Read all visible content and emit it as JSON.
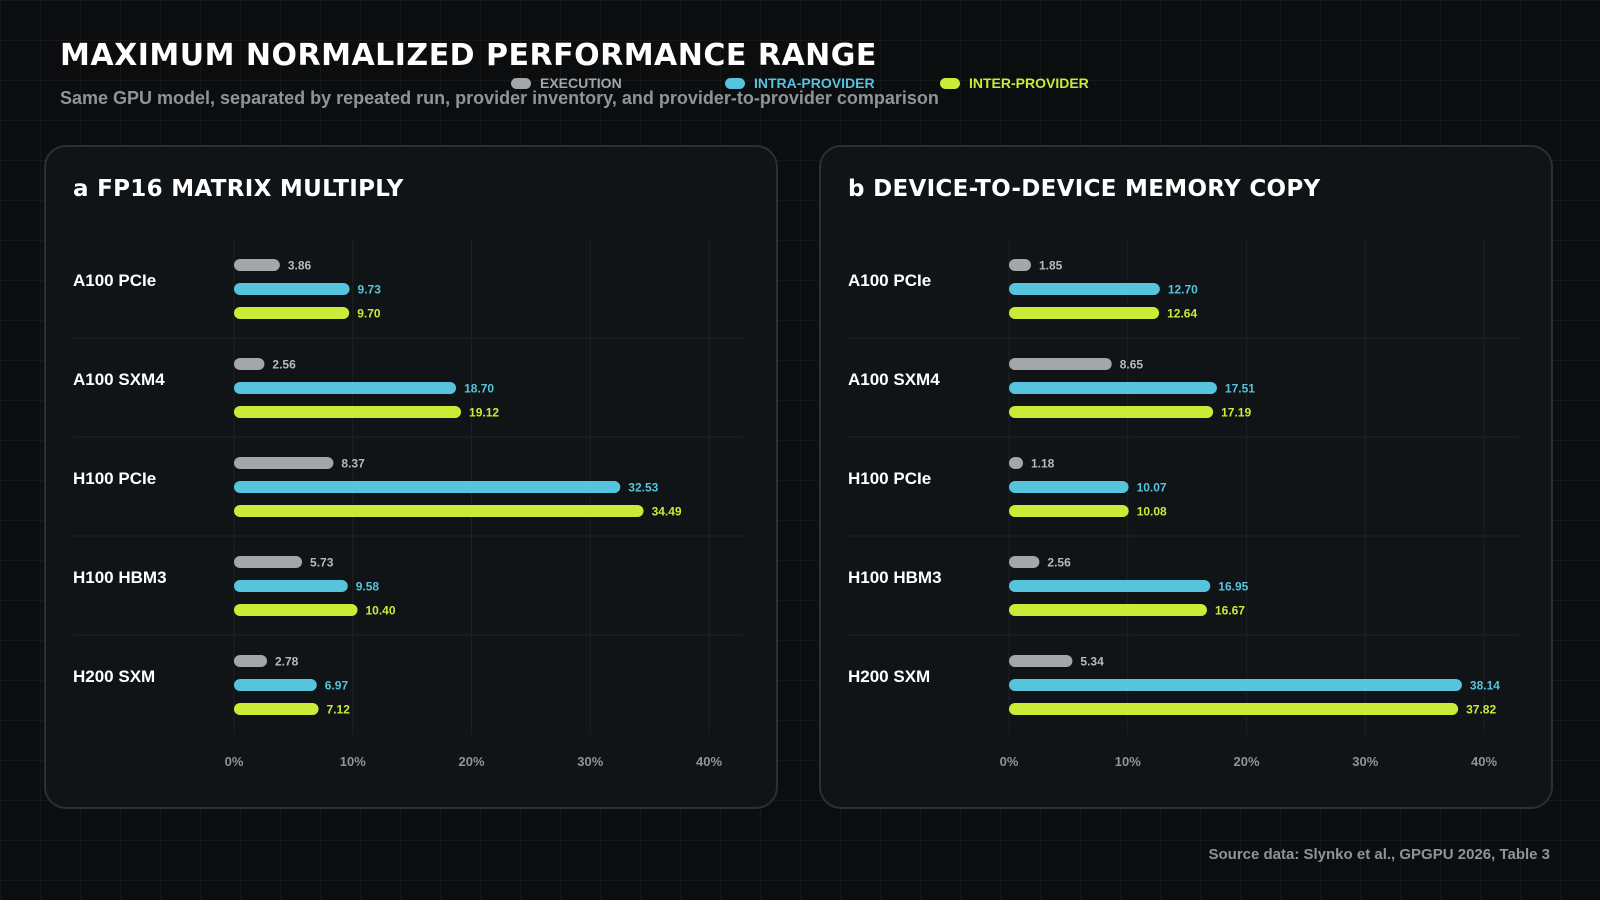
{
  "header": {
    "title": "MAXIMUM NORMALIZED PERFORMANCE RANGE",
    "subtitle": "Same GPU model, separated by repeated run, provider inventory, and provider-to-provider comparison"
  },
  "legend": [
    {
      "label": "EXECUTION",
      "color": "#a4a7aa"
    },
    {
      "label": "INTRA-PROVIDER",
      "color": "#55c4dc"
    },
    {
      "label": "INTER-PROVIDER",
      "color": "#c9ec37"
    }
  ],
  "chart_data": [
    {
      "type": "bar",
      "orientation": "horizontal",
      "title": "a FP16 MATRIX MULTIPLY",
      "categories": [
        "A100 PCIe",
        "A100 SXM4",
        "H100 PCIe",
        "H100 HBM3",
        "H200 SXM"
      ],
      "series": [
        {
          "name": "EXECUTION",
          "values": [
            3.86,
            2.56,
            8.37,
            5.73,
            2.78
          ],
          "labels": [
            "3.86",
            "2.56",
            "8.37",
            "5.73",
            "2.78"
          ]
        },
        {
          "name": "INTRA-PROVIDER",
          "values": [
            9.73,
            18.7,
            32.53,
            9.58,
            6.97
          ],
          "labels": [
            "9.73",
            "18.70",
            "32.53",
            "9.58",
            "6.97"
          ]
        },
        {
          "name": "INTER-PROVIDER",
          "values": [
            9.7,
            19.12,
            34.49,
            10.4,
            7.12
          ],
          "labels": [
            "9.70",
            "19.12",
            "34.49",
            "10.40",
            "7.12"
          ]
        }
      ],
      "xlim": [
        0,
        40
      ],
      "xticks": [
        "0%",
        "10%",
        "20%",
        "30%",
        "40%"
      ],
      "grid": true
    },
    {
      "type": "bar",
      "orientation": "horizontal",
      "title": "b DEVICE-TO-DEVICE MEMORY COPY",
      "categories": [
        "A100 PCIe",
        "A100 SXM4",
        "H100 PCIe",
        "H100 HBM3",
        "H200 SXM"
      ],
      "series": [
        {
          "name": "EXECUTION",
          "values": [
            1.85,
            8.65,
            1.18,
            2.56,
            5.34
          ],
          "labels": [
            "1.85",
            "8.65",
            "1.18",
            "2.56",
            "5.34"
          ]
        },
        {
          "name": "INTRA-PROVIDER",
          "values": [
            12.7,
            17.51,
            10.07,
            16.95,
            38.14
          ],
          "labels": [
            "12.70",
            "17.51",
            "10.07",
            "16.95",
            "38.14"
          ]
        },
        {
          "name": "INTER-PROVIDER",
          "values": [
            12.64,
            17.19,
            10.08,
            16.67,
            37.82
          ],
          "labels": [
            "12.64",
            "17.19",
            "10.08",
            "16.67",
            "37.82"
          ]
        }
      ],
      "xlim": [
        0,
        40
      ],
      "xticks": [
        "0%",
        "10%",
        "20%",
        "30%",
        "40%"
      ],
      "grid": true
    }
  ],
  "footer": {
    "source": "Source data: Slynko et al., GPGPU 2026, Table 3"
  }
}
